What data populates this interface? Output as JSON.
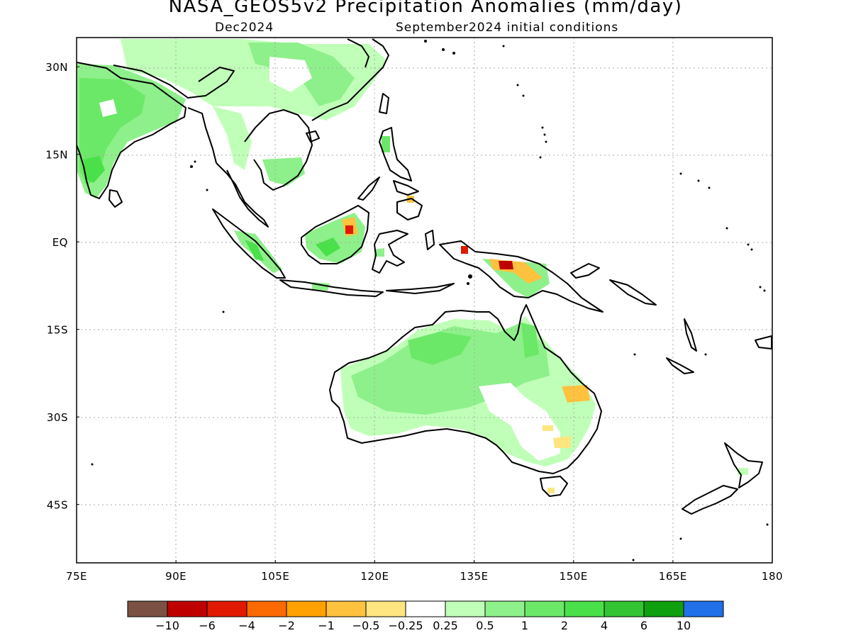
{
  "title": "NASA_GEOS5v2 Precipitation Anomalies (mm/day)",
  "subtitle_left": "Dec2024",
  "subtitle_right": "September2024 initial conditions",
  "map": {
    "lon_range": [
      75,
      180
    ],
    "lat_range": [
      -55,
      35
    ],
    "x_ticks": [
      "75E",
      "90E",
      "105E",
      "120E",
      "135E",
      "150E",
      "165E",
      "180"
    ],
    "y_ticks": [
      "30N",
      "15N",
      "EQ",
      "15S",
      "30S",
      "45S"
    ],
    "y_tick_lats": [
      30,
      15,
      0,
      -15,
      -30,
      -45
    ],
    "x_tick_lons": [
      75,
      90,
      105,
      120,
      135,
      150,
      165,
      180
    ],
    "grid": "dotted"
  },
  "colorbar": {
    "colors": [
      "#7b5144",
      "#bf0000",
      "#e01a00",
      "#fa6a00",
      "#ffa100",
      "#ffc23f",
      "#ffe580",
      "#ffffff",
      "#c0ffb8",
      "#8ef08a",
      "#6ce868",
      "#4ae04a",
      "#33c433",
      "#0fa00f",
      "#2070e8"
    ],
    "labels": [
      "−10",
      "−6",
      "−4",
      "−2",
      "−1",
      "−0.5",
      "−0.25",
      "0.25",
      "0.5",
      "1",
      "2",
      "4",
      "6",
      "10"
    ]
  },
  "anomaly_regions": [
    {
      "region": "India",
      "level": "1"
    },
    {
      "region": "Southern China",
      "level": "0.5"
    },
    {
      "region": "Indochina",
      "level": "0.5"
    },
    {
      "region": "Sumatra",
      "level": "1"
    },
    {
      "region": "Borneo",
      "level": "1"
    },
    {
      "region": "North Borneo",
      "level": "-6"
    },
    {
      "region": "New Guinea",
      "level": "-6"
    },
    {
      "region": "Northern Australia",
      "level": "1"
    },
    {
      "region": "Western Australia",
      "level": "0.5"
    },
    {
      "region": "Eastern Queensland",
      "level": "-1"
    },
    {
      "region": "New South Wales",
      "level": "-0.5"
    }
  ]
}
